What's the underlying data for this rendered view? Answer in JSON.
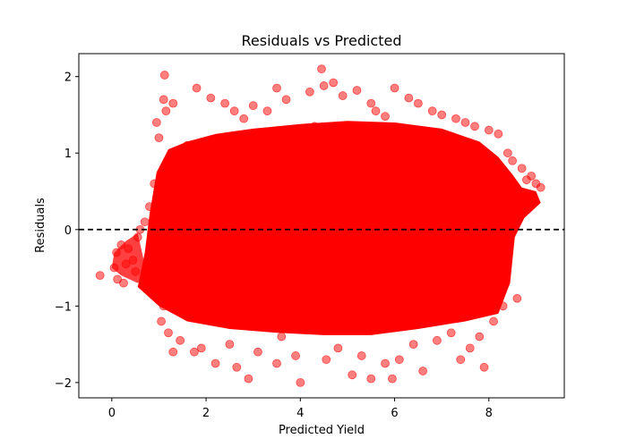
{
  "chart_data": {
    "type": "scatter",
    "title": "Residuals vs Predicted",
    "xlabel": "Predicted Yield",
    "ylabel": "Residuals",
    "xlim": [
      -0.7,
      9.6
    ],
    "ylim": [
      -2.2,
      2.3
    ],
    "x_ticks": [
      0,
      2,
      4,
      6,
      8
    ],
    "y_ticks": [
      -2,
      -1,
      0,
      1,
      2
    ],
    "x_tick_labels": [
      "0",
      "2",
      "4",
      "6",
      "8"
    ],
    "y_tick_labels": [
      "−2",
      "−1",
      "0",
      "1",
      "2"
    ],
    "grid": false,
    "point_color": "#ff0000",
    "point_alpha": 0.5,
    "reference_line": {
      "y": 0,
      "color": "#000000",
      "style": "dashed"
    },
    "series": [
      {
        "x": [
          -0.25,
          0.05,
          0.1,
          0.12,
          0.2,
          0.25,
          0.3,
          0.35,
          0.45,
          0.5,
          0.55,
          0.6,
          0.7,
          0.8,
          0.9,
          0.95,
          1.0,
          1.05,
          1.1,
          1.1,
          1.12,
          1.15,
          1.2,
          1.3,
          1.3,
          1.4,
          1.45,
          1.5,
          1.6,
          1.75,
          1.8,
          1.9,
          2.1,
          2.2,
          2.4,
          2.5,
          2.6,
          2.65,
          2.8,
          2.9,
          3.0,
          3.1,
          3.3,
          3.5,
          3.5,
          3.6,
          3.7,
          3.9,
          4.0,
          4.2,
          4.3,
          4.45,
          4.5,
          4.55,
          4.7,
          4.8,
          4.9,
          5.1,
          5.2,
          5.3,
          5.5,
          5.5,
          5.6,
          5.8,
          5.8,
          5.95,
          6.0,
          6.1,
          6.3,
          6.4,
          6.5,
          6.6,
          6.8,
          6.9,
          7.0,
          7.2,
          7.3,
          7.4,
          7.5,
          7.6,
          7.7,
          7.8,
          7.9,
          8.0,
          8.1,
          8.2,
          8.3,
          8.4,
          8.5,
          8.6,
          8.7,
          8.8,
          8.9,
          9.0,
          9.1
        ],
        "y": [
          -0.6,
          -0.5,
          -0.3,
          -0.65,
          -0.2,
          -0.7,
          -0.45,
          -0.25,
          -0.4,
          -0.55,
          -0.1,
          0.0,
          0.1,
          0.3,
          0.6,
          1.4,
          1.2,
          -1.2,
          1.7,
          -1.0,
          2.02,
          1.55,
          -1.35,
          1.65,
          -1.6,
          1.0,
          -1.45,
          -0.9,
          1.1,
          -1.6,
          1.85,
          -1.55,
          1.72,
          -1.75,
          1.65,
          -1.5,
          1.55,
          -1.8,
          1.45,
          -1.95,
          1.62,
          -1.6,
          1.55,
          -1.75,
          1.85,
          -1.4,
          1.7,
          -1.65,
          -2.0,
          1.8,
          1.35,
          2.1,
          1.88,
          -1.7,
          1.92,
          -1.55,
          1.75,
          -1.9,
          1.82,
          -1.65,
          1.65,
          -1.95,
          1.55,
          -1.75,
          1.48,
          -1.95,
          1.85,
          -1.7,
          1.72,
          -1.5,
          1.65,
          -1.85,
          1.55,
          -1.45,
          1.5,
          -1.35,
          1.45,
          -1.7,
          1.4,
          -1.55,
          1.35,
          -1.4,
          -1.8,
          1.3,
          -1.2,
          1.25,
          -1.0,
          1.0,
          0.9,
          -0.9,
          0.8,
          0.65,
          0.7,
          0.6,
          0.55
        ]
      }
    ]
  }
}
